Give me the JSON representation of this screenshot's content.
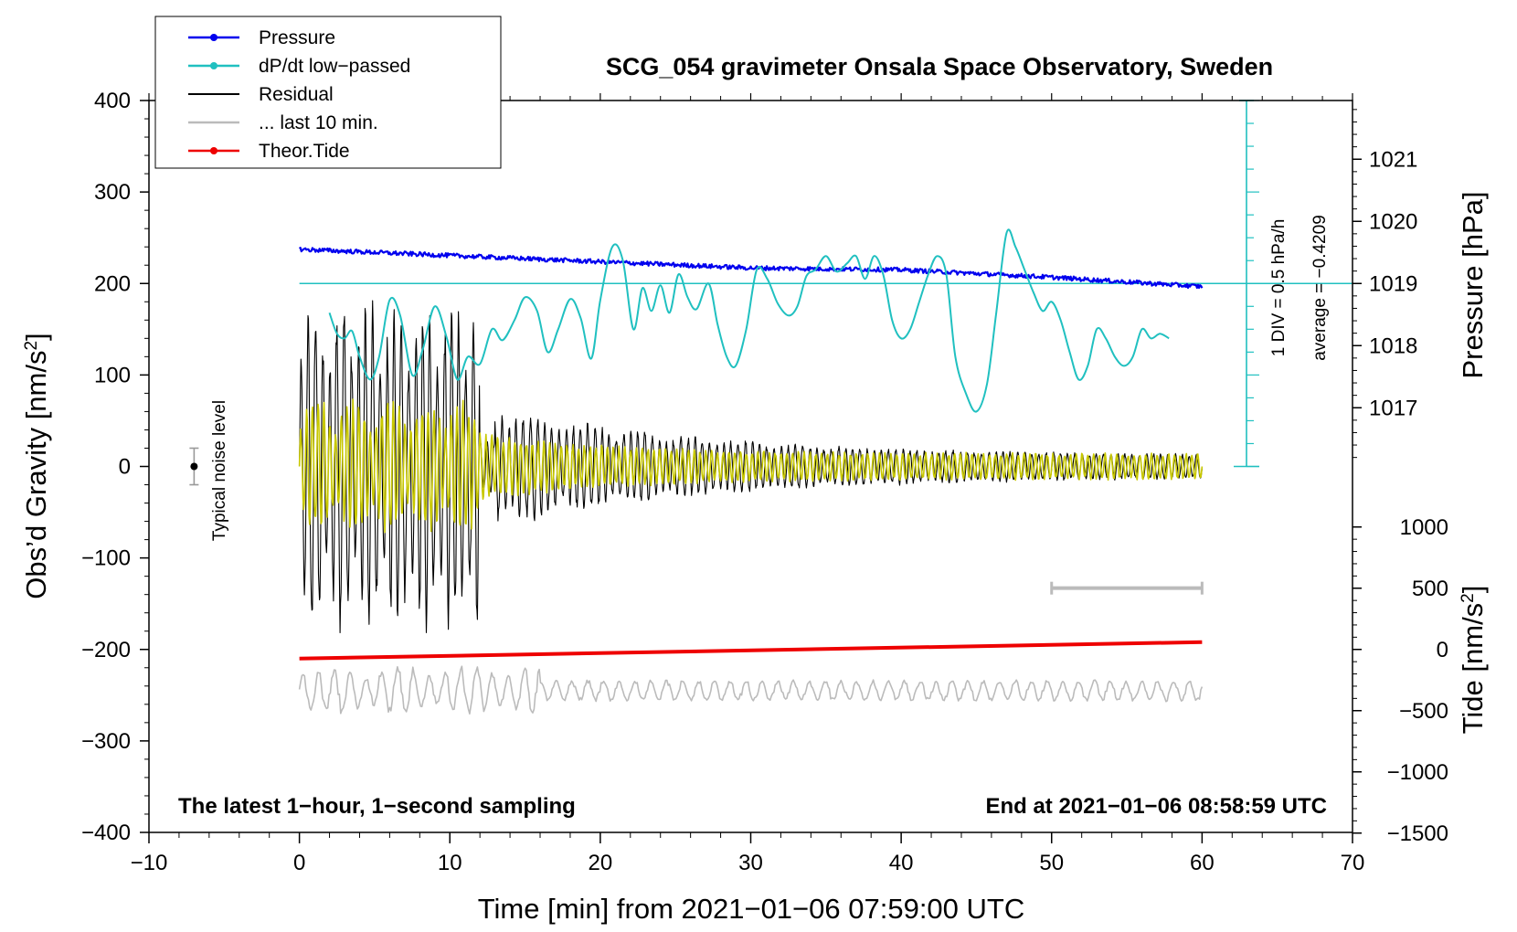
{
  "chart_data": {
    "type": "line",
    "title": "SCG_054 gravimeter Onsala Space Observatory, Sweden",
    "xlabel": "Time [min] from 2021−01−06 07:59:00 UTC",
    "xlim": [
      -10,
      70
    ],
    "xticks": [
      "−10",
      "0",
      "10",
      "20",
      "30",
      "40",
      "50",
      "60",
      "70"
    ],
    "left_axis": {
      "label": "Obs’d Gravity [nm/s²]",
      "label_main": "Obs’d Gravity [nm/s",
      "label_sup": "2",
      "label_end": "]",
      "ylim": [
        -400,
        400
      ],
      "ticks": [
        "400",
        "300",
        "200",
        "100",
        "0",
        "−100",
        "−200",
        "−300",
        "−400"
      ]
    },
    "right_pressure_axis": {
      "label": "Pressure [hPa]",
      "ticks": [
        "1021",
        "1020",
        "1019",
        "1018",
        "1017"
      ],
      "range_hpa": [
        1016,
        1022
      ]
    },
    "right_tide_axis": {
      "label": "Tide [nm/s²]",
      "label_main": "Tide [nm/s",
      "label_sup": "2",
      "label_end": "]",
      "ticks": [
        "1000",
        "500",
        "0",
        "−500",
        "−1000",
        "−1500"
      ],
      "range": [
        -1500,
        1000
      ]
    },
    "dpdt_scale": {
      "label": "1 DIV = 0.5 hPa/h",
      "average_label": "average = −0.4209"
    },
    "noise_label": "Typical noise level",
    "bottom_left_note": "The latest 1−hour, 1−second sampling",
    "bottom_right_note": "End at 2021−01−06 08:58:59 UTC",
    "legend": [
      {
        "label": "Pressure",
        "color": "#0000ee",
        "marker": true
      },
      {
        "label": "dP/dt low−passed",
        "color": "#20c0c0",
        "marker": true
      },
      {
        "label": "Residual",
        "color": "#000000",
        "marker": false
      },
      {
        "label": "... last 10 min.",
        "color": "#bbbbbb",
        "marker": false
      },
      {
        "label": "Theor.Tide",
        "color": "#ee0000",
        "marker": true
      }
    ],
    "series": {
      "pressure_hpa": {
        "x": [
          0,
          10,
          20,
          30,
          40,
          50,
          60
        ],
        "y": [
          1019.55,
          1019.45,
          1019.35,
          1019.25,
          1019.22,
          1019.1,
          1018.95
        ],
        "color": "#0000ee"
      },
      "dpdt_lowpassed": {
        "x": [
          2,
          2.5,
          3,
          3.5,
          4,
          4.7,
          5.3,
          6,
          6.7,
          7.5,
          8.2,
          9,
          9.8,
          10.5,
          11.2,
          12,
          12.8,
          13.5,
          14.3,
          15,
          15.8,
          16.5,
          17.2,
          18,
          18.7,
          19.4,
          20,
          20.8,
          21.5,
          22.2,
          22.8,
          23.4,
          24,
          24.6,
          25.2,
          25.8,
          26.4,
          27.2,
          27.8,
          28.4,
          29,
          29.7,
          30.4,
          31.1,
          31.8,
          32.5,
          33.1,
          33.7,
          34.3,
          35,
          35.7,
          36.4,
          37,
          37.6,
          38.2,
          38.8,
          39.4,
          40,
          40.6,
          41.2,
          41.8,
          42.4,
          43,
          43.6,
          44.3,
          45,
          45.7,
          46.3,
          47,
          47.6,
          48.2,
          48.8,
          49.4,
          50,
          50.6,
          51.2,
          51.8,
          52.4,
          53,
          53.6,
          54.2,
          54.8,
          55.4,
          56,
          56.6,
          57.2,
          57.8
        ],
        "y": [
          168,
          145,
          140,
          148,
          120,
          95,
          120,
          182,
          165,
          100,
          128,
          175,
          140,
          95,
          120,
          112,
          150,
          138,
          160,
          185,
          170,
          125,
          150,
          183,
          162,
          118,
          182,
          240,
          225,
          150,
          195,
          170,
          198,
          168,
          210,
          185,
          172,
          200,
          155,
          120,
          110,
          150,
          215,
          205,
          178,
          165,
          175,
          208,
          215,
          230,
          213,
          222,
          230,
          205,
          230,
          210,
          160,
          140,
          150,
          180,
          210,
          230,
          210,
          120,
          80,
          60,
          90,
          165,
          255,
          240,
          215,
          190,
          170,
          180,
          160,
          125,
          95,
          110,
          150,
          140,
          120,
          110,
          120,
          150,
          140,
          145,
          140
        ],
        "color": "#20c0c0"
      },
      "dpdt_baseline_gravity": 200,
      "residual": {
        "x_range": [
          0,
          60
        ],
        "envelope_start": 190,
        "envelope_end": 12,
        "color": "#000000"
      },
      "last_10_min_overlay": {
        "x_range": [
          0,
          60
        ],
        "amplitude_start": 80,
        "amplitude_end": 15,
        "color": "#c8c800"
      },
      "theoretical_tide": {
        "x": [
          0,
          60
        ],
        "y": [
          -210,
          -192
        ],
        "color": "#ee0000"
      },
      "gray_trace": {
        "x_range": [
          0,
          60
        ],
        "center": -245,
        "amplitude": 20,
        "color": "#bbbbbb"
      },
      "time_range_bar": {
        "x": [
          50,
          60
        ],
        "y": -133,
        "color": "#bbbbbb"
      },
      "noise_bar": {
        "x": -7,
        "center": 0,
        "half_range": 20
      }
    }
  }
}
